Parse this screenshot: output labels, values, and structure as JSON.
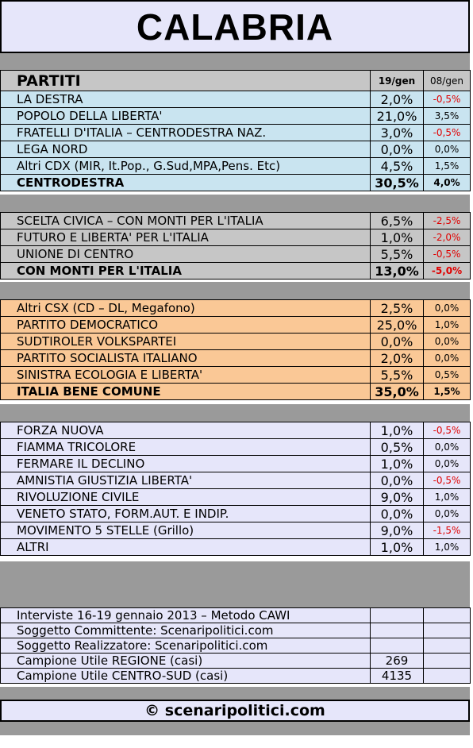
{
  "title": "CALABRIA",
  "header": {
    "col1": "PARTITI",
    "col2": "19/gen",
    "col3": "08/gen"
  },
  "groups": [
    {
      "rows": [
        {
          "name": "LA DESTRA",
          "value": "2,0%",
          "delta": "-0,5%"
        },
        {
          "name": "POPOLO DELLA LIBERTA'",
          "value": "21,0%",
          "delta": "3,5%"
        },
        {
          "name": "FRATELLI D'ITALIA – CENTRODESTRA NAZ.",
          "value": "3,0%",
          "delta": "-0,5%"
        },
        {
          "name": "LEGA NORD",
          "value": "0,0%",
          "delta": "0,0%"
        },
        {
          "name": "Altri CDX (MIR, It.Pop., G.Sud,MPA,Pens. Etc)",
          "value": "4,5%",
          "delta": "1,5%"
        },
        {
          "name": "CENTRODESTRA",
          "value": "30,5%",
          "delta": "4,0%"
        }
      ]
    },
    {
      "rows": [
        {
          "name": "SCELTA CIVICA – CON MONTI PER L'ITALIA",
          "value": "6,5%",
          "delta": "-2,5%"
        },
        {
          "name": "FUTURO E LIBERTA' PER L'ITALIA",
          "value": "1,0%",
          "delta": "-2,0%"
        },
        {
          "name": "UNIONE DI CENTRO",
          "value": "5,5%",
          "delta": "-0,5%"
        },
        {
          "name": "CON MONTI PER L'ITALIA",
          "value": "13,0%",
          "delta": "-5,0%"
        }
      ]
    },
    {
      "rows": [
        {
          "name": "Altri CSX (CD – DL, Megafono)",
          "value": "2,5%",
          "delta": "0,0%"
        },
        {
          "name": "PARTITO DEMOCRATICO",
          "value": "25,0%",
          "delta": "1,0%"
        },
        {
          "name": "SUDTIROLER VOLKSPARTEI",
          "value": "0,0%",
          "delta": "0,0%"
        },
        {
          "name": "PARTITO SOCIALISTA ITALIANO",
          "value": "2,0%",
          "delta": "0,0%"
        },
        {
          "name": "SINISTRA ECOLOGIA E LIBERTA'",
          "value": "5,5%",
          "delta": "0,5%"
        },
        {
          "name": "ITALIA BENE COMUNE",
          "value": "35,0%",
          "delta": "1,5%"
        }
      ]
    },
    {
      "rows": [
        {
          "name": "FORZA NUOVA",
          "value": "1,0%",
          "delta": "-0,5%"
        },
        {
          "name": "FIAMMA TRICOLORE",
          "value": "0,5%",
          "delta": "0,0%"
        },
        {
          "name": "FERMARE IL DECLINO",
          "value": "1,0%",
          "delta": "0,0%"
        },
        {
          "name": "AMNISTIA GIUSTIZIA LIBERTA'",
          "value": "0,0%",
          "delta": "-0,5%"
        },
        {
          "name": "RIVOLUZIONE CIVILE",
          "value": "9,0%",
          "delta": "1,0%"
        },
        {
          "name": "VENETO STATO, FORM.AUT. E INDIP.",
          "value": "0,0%",
          "delta": "0,0%"
        },
        {
          "name": "MOVIMENTO 5 STELLE (Grillo)",
          "value": "9,0%",
          "delta": "-1,5%"
        },
        {
          "name": "ALTRI",
          "value": "1,0%",
          "delta": "1,0%"
        }
      ]
    }
  ],
  "info": [
    {
      "label": "Interviste 16-19 gennaio 2013 – Metodo CAWI",
      "value": ""
    },
    {
      "label": "Soggetto Committente: Scenaripolitici.com",
      "value": ""
    },
    {
      "label": "Soggetto Realizzatore: Scenaripolitici.com",
      "value": ""
    },
    {
      "label": "Campione Utile REGIONE (casi)",
      "value": "269"
    },
    {
      "label": "Campione Utile CENTRO-SUD (casi)",
      "value": "4135"
    }
  ],
  "footer": "© scenaripolitici.com",
  "colors": {
    "title_bg": "#e6e6fa",
    "centrodestra": "#c9e4f0",
    "monti": "#c6c6c6",
    "centrosinistra": "#fac896",
    "others": "#e6e6fa",
    "separator": "#9a9a9a",
    "negative": "#e00000"
  }
}
